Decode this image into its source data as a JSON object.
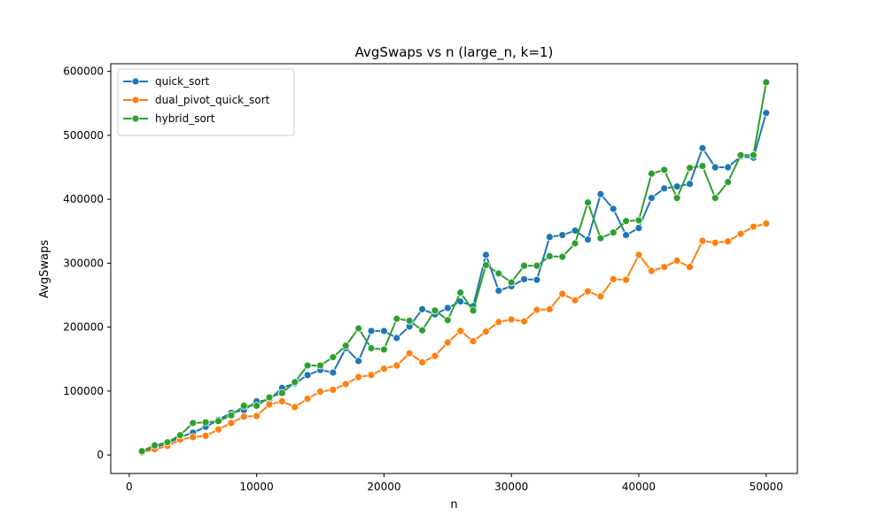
{
  "chart_data": {
    "type": "line",
    "title": "AvgSwaps vs n (large_n, k=1)",
    "xlabel": "n",
    "ylabel": "AvgSwaps",
    "xlim": [
      -1450,
      52450
    ],
    "ylim": [
      -28900,
      612000
    ],
    "xticks": [
      0,
      10000,
      20000,
      30000,
      40000,
      50000
    ],
    "yticks": [
      0,
      100000,
      200000,
      300000,
      400000,
      500000,
      600000
    ],
    "legend_position": "top-left",
    "grid": false,
    "marker": "circle",
    "x": [
      1000,
      2000,
      3000,
      4000,
      5000,
      6000,
      7000,
      8000,
      9000,
      10000,
      11000,
      12000,
      13000,
      14000,
      15000,
      16000,
      17000,
      18000,
      19000,
      20000,
      21000,
      22000,
      23000,
      24000,
      25000,
      26000,
      27000,
      28000,
      29000,
      30000,
      31000,
      32000,
      33000,
      34000,
      35000,
      36000,
      37000,
      38000,
      39000,
      40000,
      41000,
      42000,
      43000,
      44000,
      45000,
      46000,
      47000,
      48000,
      49000,
      50000
    ],
    "series": [
      {
        "name": "quick_sort",
        "color": "#1f77b4",
        "values": [
          5000,
          12000,
          18000,
          28000,
          35000,
          44000,
          55000,
          66000,
          70000,
          84000,
          86000,
          105000,
          112000,
          125000,
          133000,
          129000,
          167000,
          147000,
          194000,
          194000,
          183000,
          201000,
          228000,
          220000,
          230000,
          240000,
          233000,
          313000,
          257000,
          264000,
          275000,
          274000,
          341000,
          344000,
          351000,
          337000,
          408000,
          385000,
          344000,
          355000,
          402000,
          417000,
          420000,
          424000,
          480000,
          450000,
          450000,
          467000,
          465000,
          535000
        ]
      },
      {
        "name": "dual_pivot_quick_sort",
        "color": "#ff7f0e",
        "values": [
          4000,
          9000,
          14000,
          24000,
          28000,
          30000,
          40000,
          50000,
          60000,
          61000,
          79000,
          84000,
          75000,
          88000,
          99000,
          102000,
          111000,
          122000,
          125000,
          135000,
          140000,
          159000,
          145000,
          155000,
          176000,
          194000,
          178000,
          193000,
          208000,
          212000,
          209000,
          227000,
          228000,
          252000,
          242000,
          256000,
          248000,
          275000,
          274000,
          313000,
          288000,
          294000,
          304000,
          294000,
          335000,
          332000,
          334000,
          346000,
          357000,
          362000
        ]
      },
      {
        "name": "hybrid_sort",
        "color": "#2ca02c",
        "values": [
          6000,
          15000,
          20000,
          31000,
          50000,
          51000,
          53000,
          62000,
          77000,
          77000,
          90000,
          97000,
          114000,
          140000,
          140000,
          153000,
          171000,
          198000,
          167000,
          165000,
          213000,
          210000,
          195000,
          226000,
          211000,
          254000,
          226000,
          297000,
          284000,
          270000,
          296000,
          296000,
          311000,
          310000,
          331000,
          395000,
          339000,
          348000,
          366000,
          367000,
          440000,
          446000,
          402000,
          449000,
          452000,
          402000,
          427000,
          469000,
          469000,
          583000
        ]
      }
    ]
  }
}
